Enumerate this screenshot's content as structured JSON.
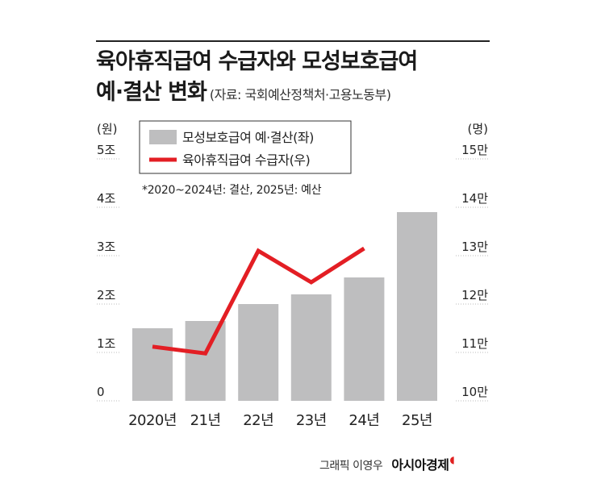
{
  "title_line1": "육아휴직급여 수급자와 모성보호급여",
  "title_line2": "예·결산 변화",
  "source": "(자료: 국회예산정책처·고용노동부)",
  "credit": "그래픽 이영우",
  "brand": "아시아경제",
  "colors": {
    "bar": "#bebebf",
    "line": "#e31e24",
    "grid": "#bbbbbb",
    "text": "#222222"
  },
  "chart_data": {
    "type": "bar+line",
    "categories": [
      "2020년",
      "21년",
      "22년",
      "23년",
      "24년",
      "25년"
    ],
    "left_axis": {
      "unit": "(원)",
      "ticks": [
        "0",
        "1조",
        "2조",
        "3조",
        "4조",
        "5조"
      ],
      "range": [
        0,
        5
      ]
    },
    "right_axis": {
      "unit": "(명)",
      "ticks": [
        "10만",
        "11만",
        "12만",
        "13만",
        "14만",
        "15만"
      ],
      "range": [
        10,
        15
      ]
    },
    "series": [
      {
        "name": "모성보호급여 예·결산(좌)",
        "type": "bar",
        "axis": "left",
        "values": [
          1.5,
          1.65,
          2.0,
          2.2,
          2.55,
          3.9
        ]
      },
      {
        "name": "육아휴직급여 수급자(우)",
        "type": "line",
        "axis": "right",
        "values": [
          11.12,
          10.98,
          13.1,
          12.45,
          13.15,
          null
        ]
      }
    ],
    "note": "*2020~2024년: 결산, 2025년: 예산",
    "grid": true
  }
}
